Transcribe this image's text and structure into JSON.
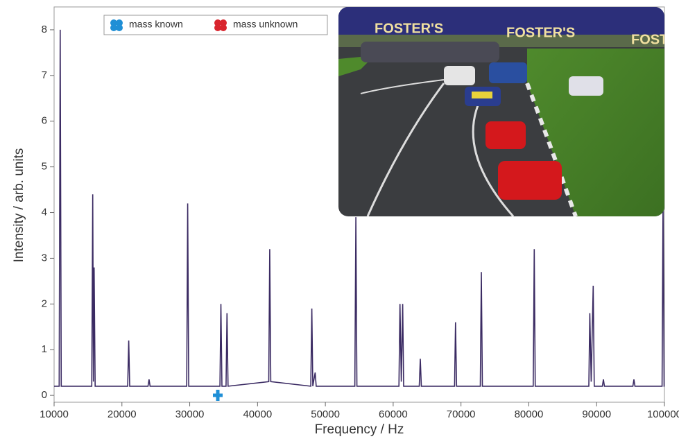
{
  "chart_data": {
    "type": "line",
    "xlabel": "Frequency / Hz",
    "ylabel": "Intensity / arb. units",
    "xlim": [
      10000,
      100000
    ],
    "ylim": [
      -0.15,
      8.5
    ],
    "xticks": [
      10000,
      20000,
      30000,
      40000,
      50000,
      60000,
      70000,
      80000,
      90000,
      100000
    ],
    "yticks": [
      0,
      1,
      2,
      3,
      4,
      5,
      6,
      7,
      8
    ],
    "legend": {
      "items": [
        {
          "label": "mass known",
          "color": "#1f8fd6"
        },
        {
          "label": "mass unknown",
          "color": "#d9252e"
        }
      ]
    },
    "series": [
      {
        "color": "#3b2b63",
        "x": [
          10000,
          10750,
          10900,
          11050,
          15550,
          15700,
          15800,
          15900,
          16050,
          20850,
          21000,
          21150,
          23850,
          24000,
          24150,
          29550,
          29700,
          29850,
          34450,
          34600,
          34750,
          35350,
          35500,
          35650,
          41650,
          41800,
          41950,
          47850,
          48000,
          48150,
          48500,
          48650,
          54350,
          54500,
          54650,
          60850,
          61000,
          61200,
          61400,
          61550,
          63850,
          64000,
          64150,
          69050,
          69200,
          69350,
          72850,
          73000,
          73150,
          80650,
          80800,
          80950,
          88850,
          89000,
          89200,
          89500,
          89650,
          90850,
          91000,
          91150,
          95350,
          95500,
          95650,
          99650,
          99800,
          99950,
          100000
        ],
        "values": [
          0.2,
          0.2,
          8.0,
          0.2,
          0.2,
          4.4,
          0.3,
          2.8,
          0.2,
          0.2,
          1.2,
          0.2,
          0.2,
          0.35,
          0.2,
          0.2,
          4.2,
          0.2,
          0.2,
          2.0,
          0.2,
          0.2,
          1.8,
          0.2,
          0.3,
          3.2,
          0.3,
          0.2,
          1.9,
          0.2,
          0.5,
          0.2,
          0.2,
          3.9,
          0.2,
          0.2,
          2.0,
          0.3,
          2.0,
          0.2,
          0.2,
          0.8,
          0.2,
          0.2,
          1.6,
          0.2,
          0.2,
          2.7,
          0.2,
          0.2,
          3.2,
          0.2,
          0.2,
          1.8,
          0.3,
          2.4,
          0.2,
          0.2,
          0.35,
          0.2,
          0.2,
          0.35,
          0.2,
          0.2,
          4.3,
          0.2,
          0.2
        ]
      }
    ]
  },
  "inset": {
    "banner_text": "FOSTER'S"
  }
}
